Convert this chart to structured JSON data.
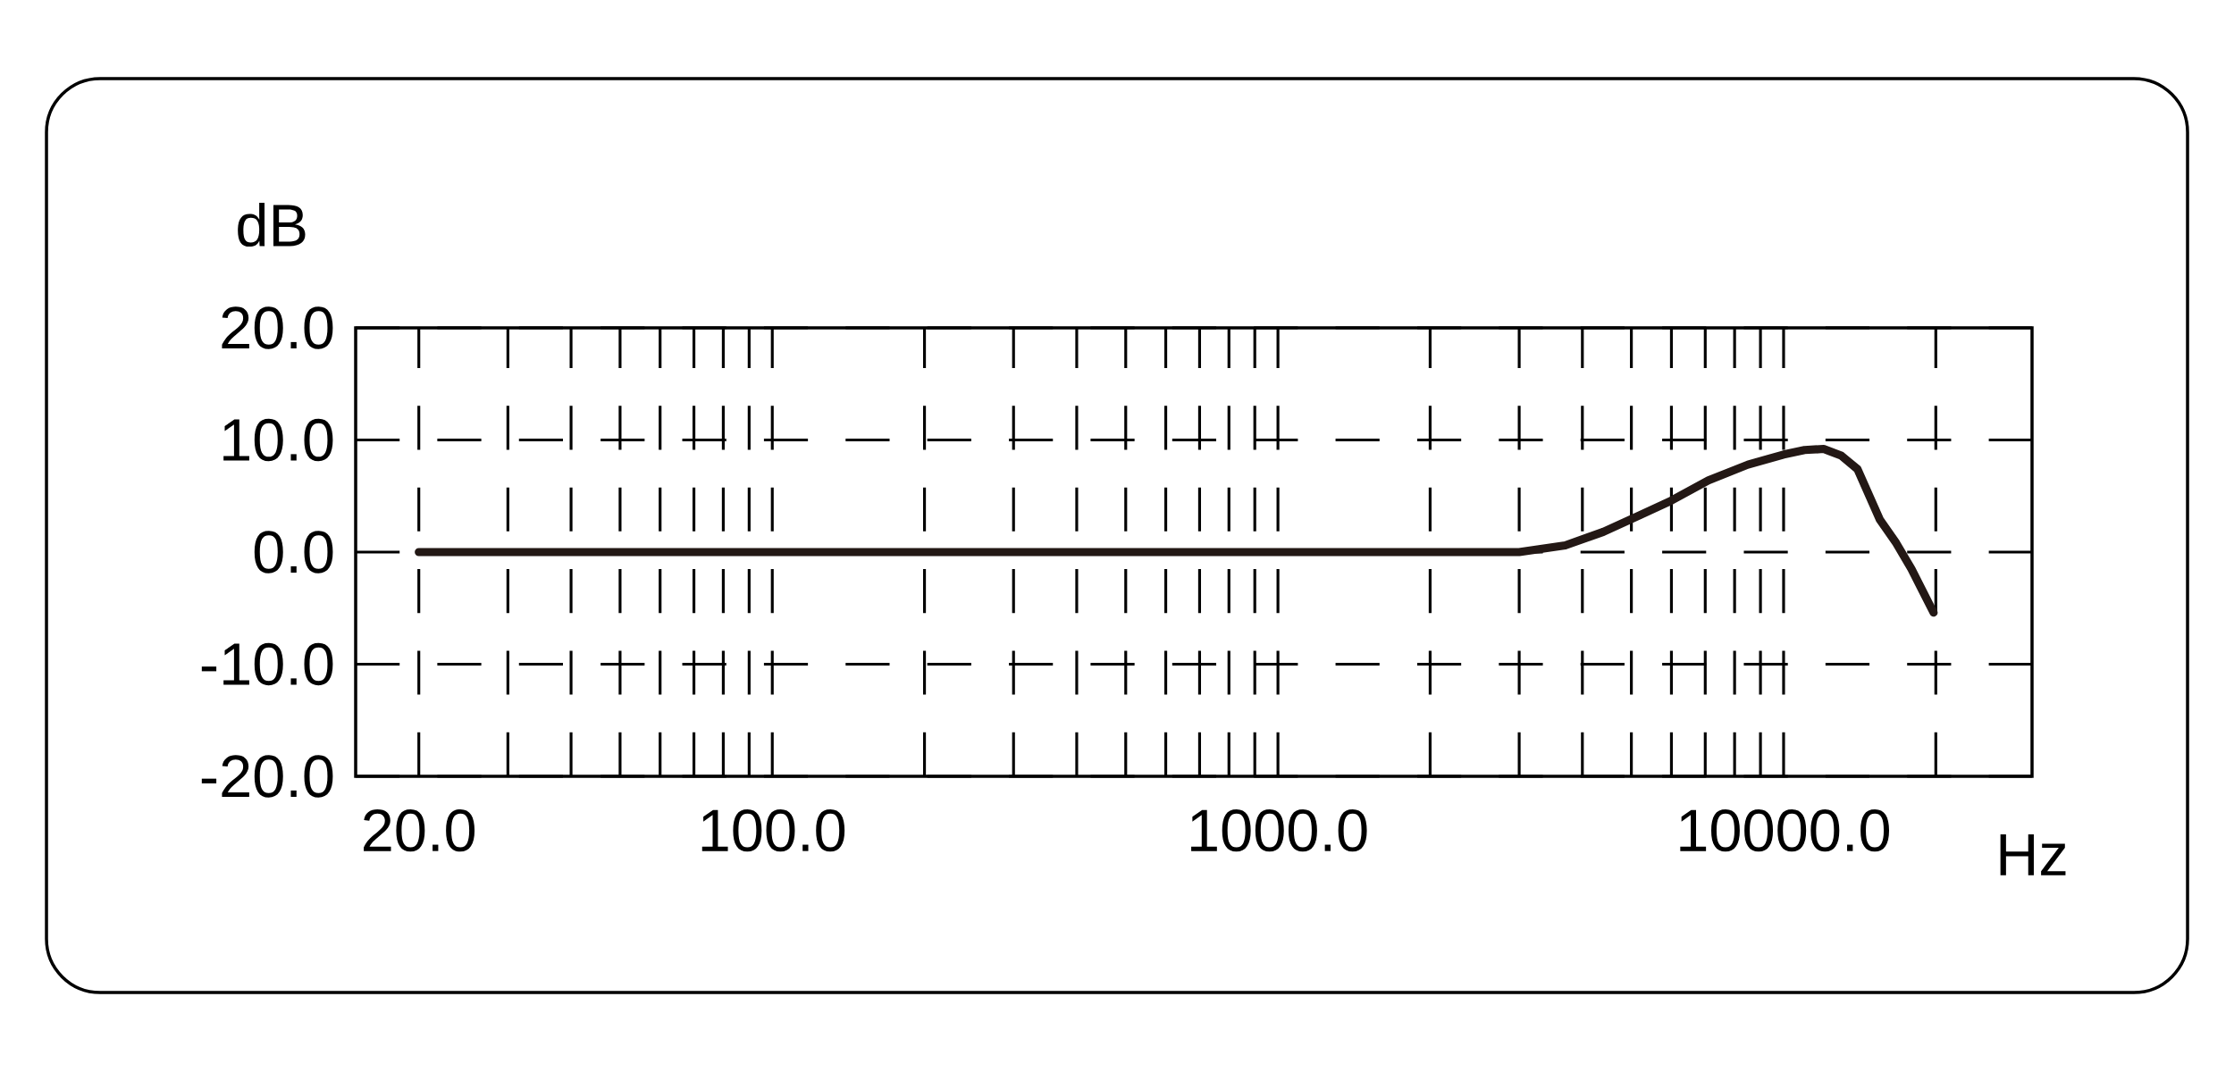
{
  "chart_data": {
    "type": "line",
    "xlabel": "Hz",
    "ylabel": "dB",
    "log": "x",
    "grid": true,
    "marker": "none",
    "line_style": "solid",
    "xlim": [
      15,
      31000
    ],
    "ylim": [
      -20,
      20
    ],
    "xticks": [
      {
        "value": 20,
        "label": "20.0"
      },
      {
        "value": 30,
        "label": null
      },
      {
        "value": 40,
        "label": null
      },
      {
        "value": 50,
        "label": null
      },
      {
        "value": 60,
        "label": null
      },
      {
        "value": 70,
        "label": null
      },
      {
        "value": 80,
        "label": null
      },
      {
        "value": 90,
        "label": null
      },
      {
        "value": 100,
        "label": "100.0"
      },
      {
        "value": 200,
        "label": null
      },
      {
        "value": 300,
        "label": null
      },
      {
        "value": 400,
        "label": null
      },
      {
        "value": 500,
        "label": null
      },
      {
        "value": 600,
        "label": null
      },
      {
        "value": 700,
        "label": null
      },
      {
        "value": 800,
        "label": null
      },
      {
        "value": 900,
        "label": null
      },
      {
        "value": 1000,
        "label": "1000.0"
      },
      {
        "value": 2000,
        "label": null
      },
      {
        "value": 3000,
        "label": null
      },
      {
        "value": 4000,
        "label": null
      },
      {
        "value": 5000,
        "label": null
      },
      {
        "value": 6000,
        "label": null
      },
      {
        "value": 7000,
        "label": null
      },
      {
        "value": 8000,
        "label": null
      },
      {
        "value": 9000,
        "label": null
      },
      {
        "value": 10000,
        "label": "10000.0"
      },
      {
        "value": 20000,
        "label": null
      }
    ],
    "yticks": [
      {
        "value": -20,
        "label": "-20.0"
      },
      {
        "value": -10,
        "label": "-10.0"
      },
      {
        "value": 0,
        "label": "0.0"
      },
      {
        "value": 10,
        "label": "10.0"
      },
      {
        "value": 20,
        "label": "20.0"
      }
    ],
    "x": [
      20,
      1000,
      3000,
      3700,
      4400,
      5200,
      6000,
      7100,
      8500,
      10000,
      11000,
      12000,
      13000,
      14000,
      15500,
      16700,
      17900,
      18800,
      19800
    ],
    "series": [
      {
        "color": "#231815",
        "values": [
          0,
          0,
          0,
          0.6,
          1.8,
          3.3,
          4.6,
          6.4,
          7.8,
          8.7,
          9.1,
          9.2,
          8.6,
          7.4,
          2.9,
          0.8,
          -1.5,
          -3.4,
          -5.4
        ]
      }
    ]
  }
}
